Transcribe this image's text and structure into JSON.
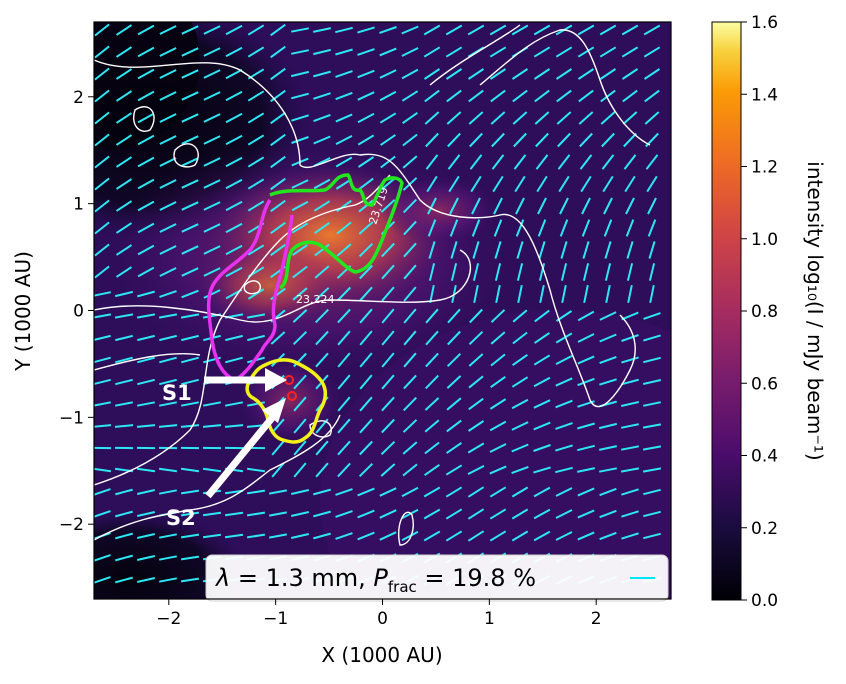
{
  "chart_data": {
    "type": "heatmap",
    "title": "",
    "xlabel": "X (1000 AU)",
    "ylabel": "Y (1000 AU)",
    "xlim": [
      -2.7,
      2.7
    ],
    "ylim": [
      -2.7,
      2.7
    ],
    "xticks": [
      -2,
      -1,
      0,
      1,
      2
    ],
    "yticks": [
      -2,
      -1,
      0,
      1,
      2
    ],
    "xtick_labels": [
      "−2",
      "−1",
      "0",
      "1",
      "2"
    ],
    "ytick_labels": [
      "−2",
      "−1",
      "0",
      "1",
      "2"
    ],
    "colormap": "inferno",
    "colorbar": {
      "label": "intensity log₁₀(I / mJy beam⁻¹)",
      "range": [
        0.0,
        1.6
      ],
      "ticks": [
        0.0,
        0.2,
        0.4,
        0.6,
        0.8,
        1.0,
        1.2,
        1.4,
        1.6
      ],
      "tick_labels": [
        "0.0",
        "0.2",
        "0.4",
        "0.6",
        "0.8",
        "1.0",
        "1.2",
        "1.4",
        "1.6"
      ]
    },
    "legend": {
      "placement": "lower-right",
      "text": "λ = 1.3 mm, P_frac = 19.8 %",
      "line_color": "#00e5ff"
    },
    "contour_labels": [
      "23.224",
      "23.719"
    ],
    "sources": [
      {
        "name": "S1",
        "x": -0.85,
        "y": -0.63
      },
      {
        "name": "S2",
        "x": -0.82,
        "y": -0.78
      }
    ],
    "vector_color": "#2ce8f5",
    "region_colors": {
      "green": "#22e61e",
      "magenta": "#e832f0",
      "yellow": "#f2f21a",
      "contour": "#ffffff"
    }
  }
}
